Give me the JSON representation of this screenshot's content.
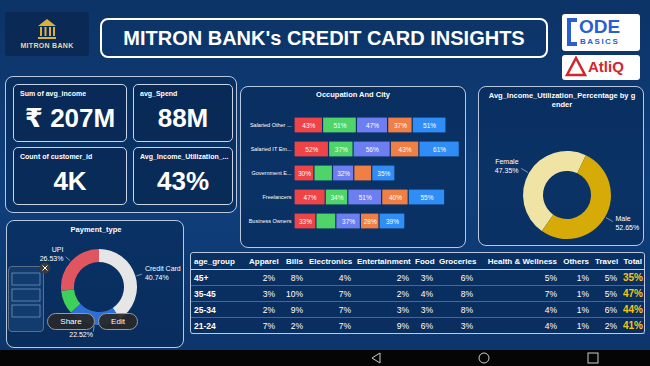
{
  "header": {
    "title": "MITRON BANK's CREDIT CARD INSIGHTS",
    "logo": "MITRON BANK",
    "code_basics": [
      "ODE",
      "BASICS"
    ],
    "atliq": "AtliQ"
  },
  "kpis": [
    {
      "label": "Sum of avg_income",
      "value": "₹ 207M"
    },
    {
      "label": "avg_Spend",
      "value": "88M"
    },
    {
      "label": "Count of customer_id",
      "value": "4K"
    },
    {
      "label": "Avg_Income_Utilization_...",
      "value": "43%"
    }
  ],
  "chart_data": [
    {
      "type": "bar",
      "title": "Occupation And City",
      "orientation": "horizontal",
      "stacked": true,
      "data_labels": true,
      "tick_labels": "y",
      "categories": [
        "Salaried Other ...",
        "Salaried IT Em...",
        "Government E...",
        "Freelancers",
        "Business Owners"
      ],
      "xlim": [
        0,
        250
      ],
      "series": [
        {
          "color": "#ee4347",
          "values": [
            43,
            52,
            30,
            47,
            33
          ],
          "value_labels": [
            "43%",
            "52%",
            "30%",
            "47%",
            "33%"
          ]
        },
        {
          "color": "#4fd46a",
          "values": [
            51,
            37,
            28,
            34,
            30
          ],
          "value_labels": [
            "51%",
            "37%",
            null,
            "34%",
            null
          ]
        },
        {
          "color": "#6d7ff0",
          "values": [
            47,
            56,
            32,
            51,
            37
          ],
          "value_labels": [
            "47%",
            "56%",
            "32%",
            "51%",
            "37%"
          ]
        },
        {
          "color": "#f07f45",
          "values": [
            37,
            43,
            27,
            40,
            28
          ],
          "value_labels": [
            "37%",
            "43%",
            null,
            "40%",
            "28%"
          ]
        },
        {
          "color": "#2f8df5",
          "values": [
            51,
            61,
            35,
            55,
            39
          ],
          "value_labels": [
            "51%",
            "61%",
            "35%",
            "55%",
            "39%"
          ]
        }
      ]
    },
    {
      "type": "donut",
      "title": "Avg_Income_Utilization_Percentage by gender",
      "data_labels": true,
      "categories": [
        "Female",
        "Male"
      ],
      "values": [
        47.35,
        52.65
      ],
      "value_labels": [
        "47.35%",
        "52.65%"
      ],
      "colors": [
        "#f0e4a4",
        "#d6ab08"
      ]
    },
    {
      "type": "donut",
      "title": "Payment_type",
      "data_labels": true,
      "categories": [
        "Credit Card",
        null,
        null,
        "UPI"
      ],
      "values": [
        40.74,
        22.52,
        10.21,
        26.53
      ],
      "value_labels": [
        "40.74%",
        "22.52%",
        null,
        "26.53%"
      ],
      "colors": [
        "#e6e6e6",
        "#2d6fd6",
        "#3fcf5b",
        "#e05660"
      ]
    }
  ],
  "table": {
    "columns": [
      "age_group",
      "Apparel",
      "Bills",
      "Electronics",
      "Entertainment",
      "Food",
      "Groceries",
      "Health & Wellness",
      "Others",
      "Travel",
      "Total"
    ],
    "rows": [
      [
        "45+",
        "2%",
        "8%",
        "4%",
        "2%",
        "3%",
        "6%",
        "5%",
        "1%",
        "5%",
        "35%"
      ],
      [
        "35-45",
        "3%",
        "10%",
        "7%",
        "2%",
        "4%",
        "8%",
        "7%",
        "1%",
        "5%",
        "47%"
      ],
      [
        "25-34",
        "2%",
        "9%",
        "7%",
        "3%",
        "3%",
        "8%",
        "4%",
        "1%",
        "6%",
        "44%"
      ],
      [
        "21-24",
        "7%",
        "2%",
        "7%",
        "9%",
        "6%",
        "3%",
        "4%",
        "1%",
        "2%",
        "41%"
      ]
    ]
  },
  "overlay": {
    "buttons": [
      "Share",
      "Edit"
    ]
  }
}
